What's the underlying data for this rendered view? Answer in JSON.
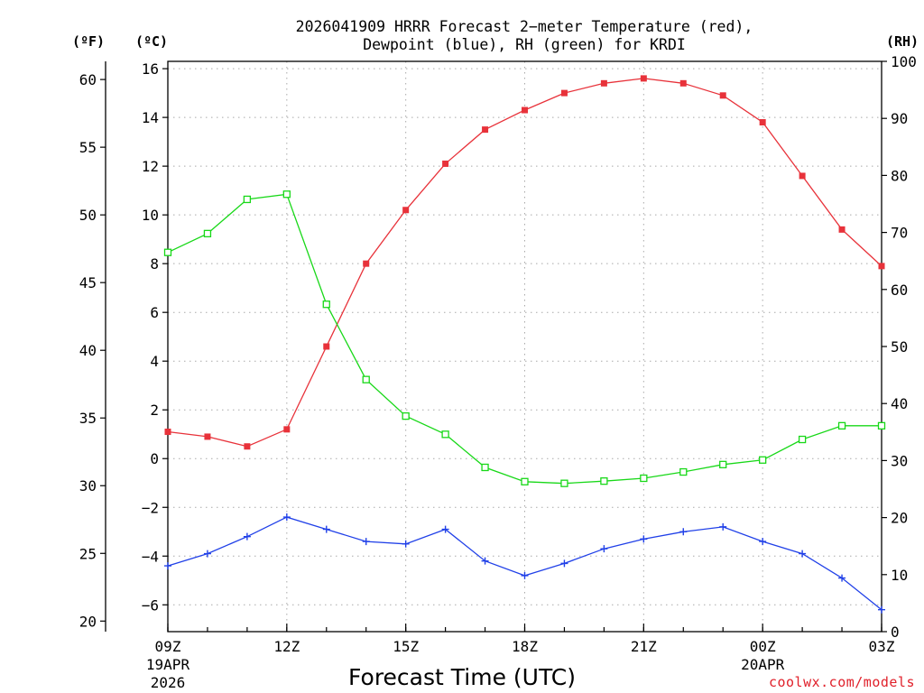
{
  "chart_data": {
    "type": "line",
    "title_line1": "2026041909 HRRR Forecast 2−meter Temperature (red),",
    "title_line2": "Dewpoint (blue), RH (green) for KRDI",
    "xlabel": "Forecast Time (UTC)",
    "credit": "coolwx.com/models",
    "units": {
      "fahrenheit": "(ºF)",
      "celsius": "(ºC)",
      "rh": "(RH)"
    },
    "x_hours": [
      9,
      10,
      11,
      12,
      13,
      14,
      15,
      16,
      17,
      18,
      19,
      20,
      21,
      22,
      23,
      24,
      25,
      26,
      27
    ],
    "x_ticks": [
      {
        "hour": 9,
        "label": "09Z",
        "sub1": "19APR",
        "sub2": "2026"
      },
      {
        "hour": 12,
        "label": "12Z",
        "sub1": "",
        "sub2": ""
      },
      {
        "hour": 15,
        "label": "15Z",
        "sub1": "",
        "sub2": ""
      },
      {
        "hour": 18,
        "label": "18Z",
        "sub1": "",
        "sub2": ""
      },
      {
        "hour": 21,
        "label": "21Z",
        "sub1": "",
        "sub2": ""
      },
      {
        "hour": 24,
        "label": "00Z",
        "sub1": "20APR",
        "sub2": ""
      },
      {
        "hour": 27,
        "label": "03Z",
        "sub1": "",
        "sub2": ""
      }
    ],
    "celsius_axis": {
      "min": -7.1,
      "max": 16.3,
      "ticks": [
        -6,
        -4,
        -2,
        0,
        2,
        4,
        6,
        8,
        10,
        12,
        14,
        16
      ],
      "tick_labels": [
        "−6",
        "−4",
        "−2",
        "0",
        "2",
        "4",
        "6",
        "8",
        "10",
        "12",
        "14",
        "16"
      ]
    },
    "fahrenheit_ticks": [
      20,
      25,
      30,
      35,
      40,
      45,
      50,
      55,
      60
    ],
    "rh_axis": {
      "min": 0,
      "max": 100,
      "ticks": [
        0,
        10,
        20,
        30,
        40,
        50,
        60,
        70,
        80,
        90,
        100
      ]
    },
    "series": [
      {
        "name": "Temperature",
        "axis": "celsius",
        "color": "#e8323a",
        "marker": "filled-square",
        "values": [
          1.1,
          0.9,
          0.5,
          1.2,
          4.6,
          8.0,
          10.2,
          12.1,
          13.5,
          14.3,
          15.0,
          15.4,
          15.6,
          15.4,
          14.9,
          13.8,
          11.6,
          9.4,
          7.9
        ]
      },
      {
        "name": "Dewpoint",
        "axis": "celsius",
        "color": "#2040e8",
        "marker": "plus",
        "values": [
          -4.4,
          -3.9,
          -3.2,
          -2.4,
          -2.9,
          -3.4,
          -3.5,
          -2.9,
          -4.2,
          -4.8,
          -4.3,
          -3.7,
          -3.3,
          -3.0,
          -2.8,
          -3.4,
          -3.9,
          -4.9,
          -6.2
        ]
      },
      {
        "name": "RH",
        "axis": "rh",
        "color": "#18d818",
        "marker": "open-square",
        "values": [
          66.5,
          69.8,
          75.8,
          76.7,
          57.4,
          44.2,
          37.8,
          34.6,
          28.8,
          26.3,
          26.0,
          26.4,
          26.9,
          28.0,
          29.3,
          30.1,
          33.7,
          36.1,
          36.1
        ]
      }
    ]
  }
}
